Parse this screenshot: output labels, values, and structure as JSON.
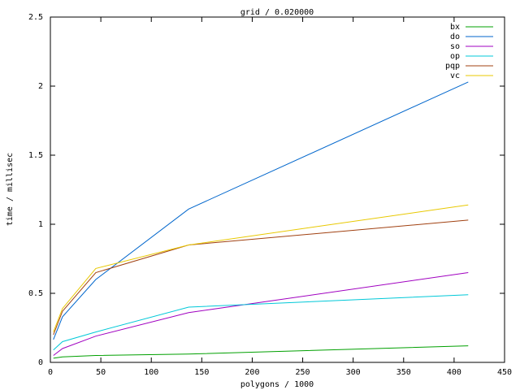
{
  "chart_data": {
    "type": "line",
    "title": "grid / 0.020000",
    "x_label": "polygons / 1000",
    "y_label": "time / millisec",
    "x": [
      3,
      12,
      45,
      137,
      414
    ],
    "series": [
      {
        "name": "bx",
        "color": "#00a000",
        "values": [
          0.03,
          0.04,
          0.05,
          0.06,
          0.12
        ]
      },
      {
        "name": "do",
        "color": "#0066cc",
        "values": [
          0.165,
          0.33,
          0.6,
          1.11,
          2.03
        ]
      },
      {
        "name": "so",
        "color": "#a000c0",
        "values": [
          0.05,
          0.1,
          0.19,
          0.36,
          0.65
        ]
      },
      {
        "name": "op",
        "color": "#00c8d8",
        "values": [
          0.09,
          0.15,
          0.22,
          0.4,
          0.49
        ]
      },
      {
        "name": "pqp",
        "color": "#a04010",
        "values": [
          0.2,
          0.37,
          0.65,
          0.85,
          1.03
        ]
      },
      {
        "name": "vc",
        "color": "#e8c800",
        "values": [
          0.22,
          0.39,
          0.68,
          0.85,
          1.14
        ]
      }
    ],
    "xlim": [
      0,
      450
    ],
    "xticks": [
      0,
      50,
      100,
      150,
      200,
      250,
      300,
      350,
      400,
      450
    ],
    "ylim": [
      0,
      2.5
    ],
    "yticks": [
      0,
      0.5,
      1,
      1.5,
      2,
      2.5
    ],
    "grid": false,
    "legend": "top-right"
  }
}
